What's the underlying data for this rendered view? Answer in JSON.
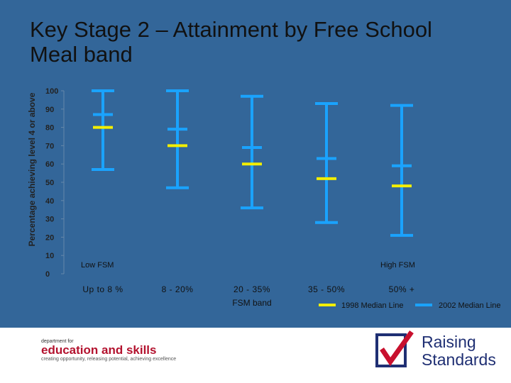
{
  "title_lines": [
    "Key Stage 2 – Attainment by Free School",
    "Meal band"
  ],
  "chart_data": {
    "type": "range",
    "ylabel": "Percentage achieving level 4 or above",
    "xlabel": "FSM band",
    "ylim": [
      0,
      100
    ],
    "yticks": [
      0,
      10,
      20,
      30,
      40,
      50,
      60,
      70,
      80,
      90,
      100
    ],
    "categories": [
      "Up to 8 %",
      "8 - 20%",
      "20 - 35%",
      "35 - 50%",
      "50% +"
    ],
    "low_label": "Low FSM",
    "high_label": "High FSM",
    "ranges": [
      {
        "low": 57,
        "high": 100
      },
      {
        "low": 47,
        "high": 100
      },
      {
        "low": 36,
        "high": 97
      },
      {
        "low": 28,
        "high": 93
      },
      {
        "low": 21,
        "high": 92
      }
    ],
    "series": [
      {
        "name": "1998 Median Line",
        "color": "#f2ee00",
        "values": [
          80,
          70,
          60,
          52,
          48
        ]
      },
      {
        "name": "2002 Median Line",
        "color": "#1aa3ff",
        "values": [
          87,
          79,
          69,
          63,
          59
        ]
      }
    ],
    "range_color": "#1aa3ff"
  },
  "footer": {
    "dept_small": "department for",
    "dept_big": "education and skills",
    "dept_tag": "creating opportunity, releasing potential, achieving excellence",
    "rs_line1": "Raising",
    "rs_line2": "Standards"
  }
}
